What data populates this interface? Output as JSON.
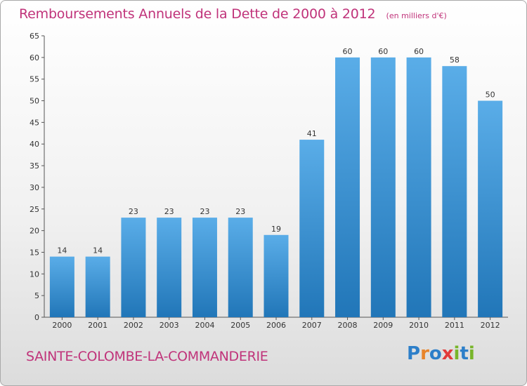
{
  "header": {
    "title": "Remboursements Annuels de la Dette de 2000 à 2012",
    "unit": "(en milliers d'€)"
  },
  "footer": {
    "commune": "SAINTE-COLOMBE-LA-COMMANDERIE",
    "logo": [
      "P",
      "r",
      "o",
      "x",
      "i",
      "t",
      "i"
    ]
  },
  "colors": {
    "title": "#c0337a",
    "bar_top": "#5aade8",
    "bar_bottom": "#2176b8",
    "logo": [
      "#2d7fc9",
      "#e8842a",
      "#2d7fc9",
      "#e23b3b",
      "#78b52a",
      "#2d7fc9",
      "#78b52a"
    ]
  },
  "chart_data": {
    "type": "bar",
    "title": "Remboursements Annuels de la Dette de 2000 à 2012",
    "categories": [
      "2000",
      "2001",
      "2002",
      "2003",
      "2004",
      "2005",
      "2006",
      "2007",
      "2008",
      "2009",
      "2010",
      "2011",
      "2012"
    ],
    "values": [
      14,
      14,
      23,
      23,
      23,
      23,
      19,
      41,
      60,
      60,
      60,
      58,
      50
    ],
    "ylim": [
      0,
      65
    ],
    "yticks": [
      0,
      5,
      10,
      15,
      20,
      25,
      30,
      35,
      40,
      45,
      50,
      55,
      60,
      65
    ],
    "grid": false,
    "legend": "none"
  }
}
